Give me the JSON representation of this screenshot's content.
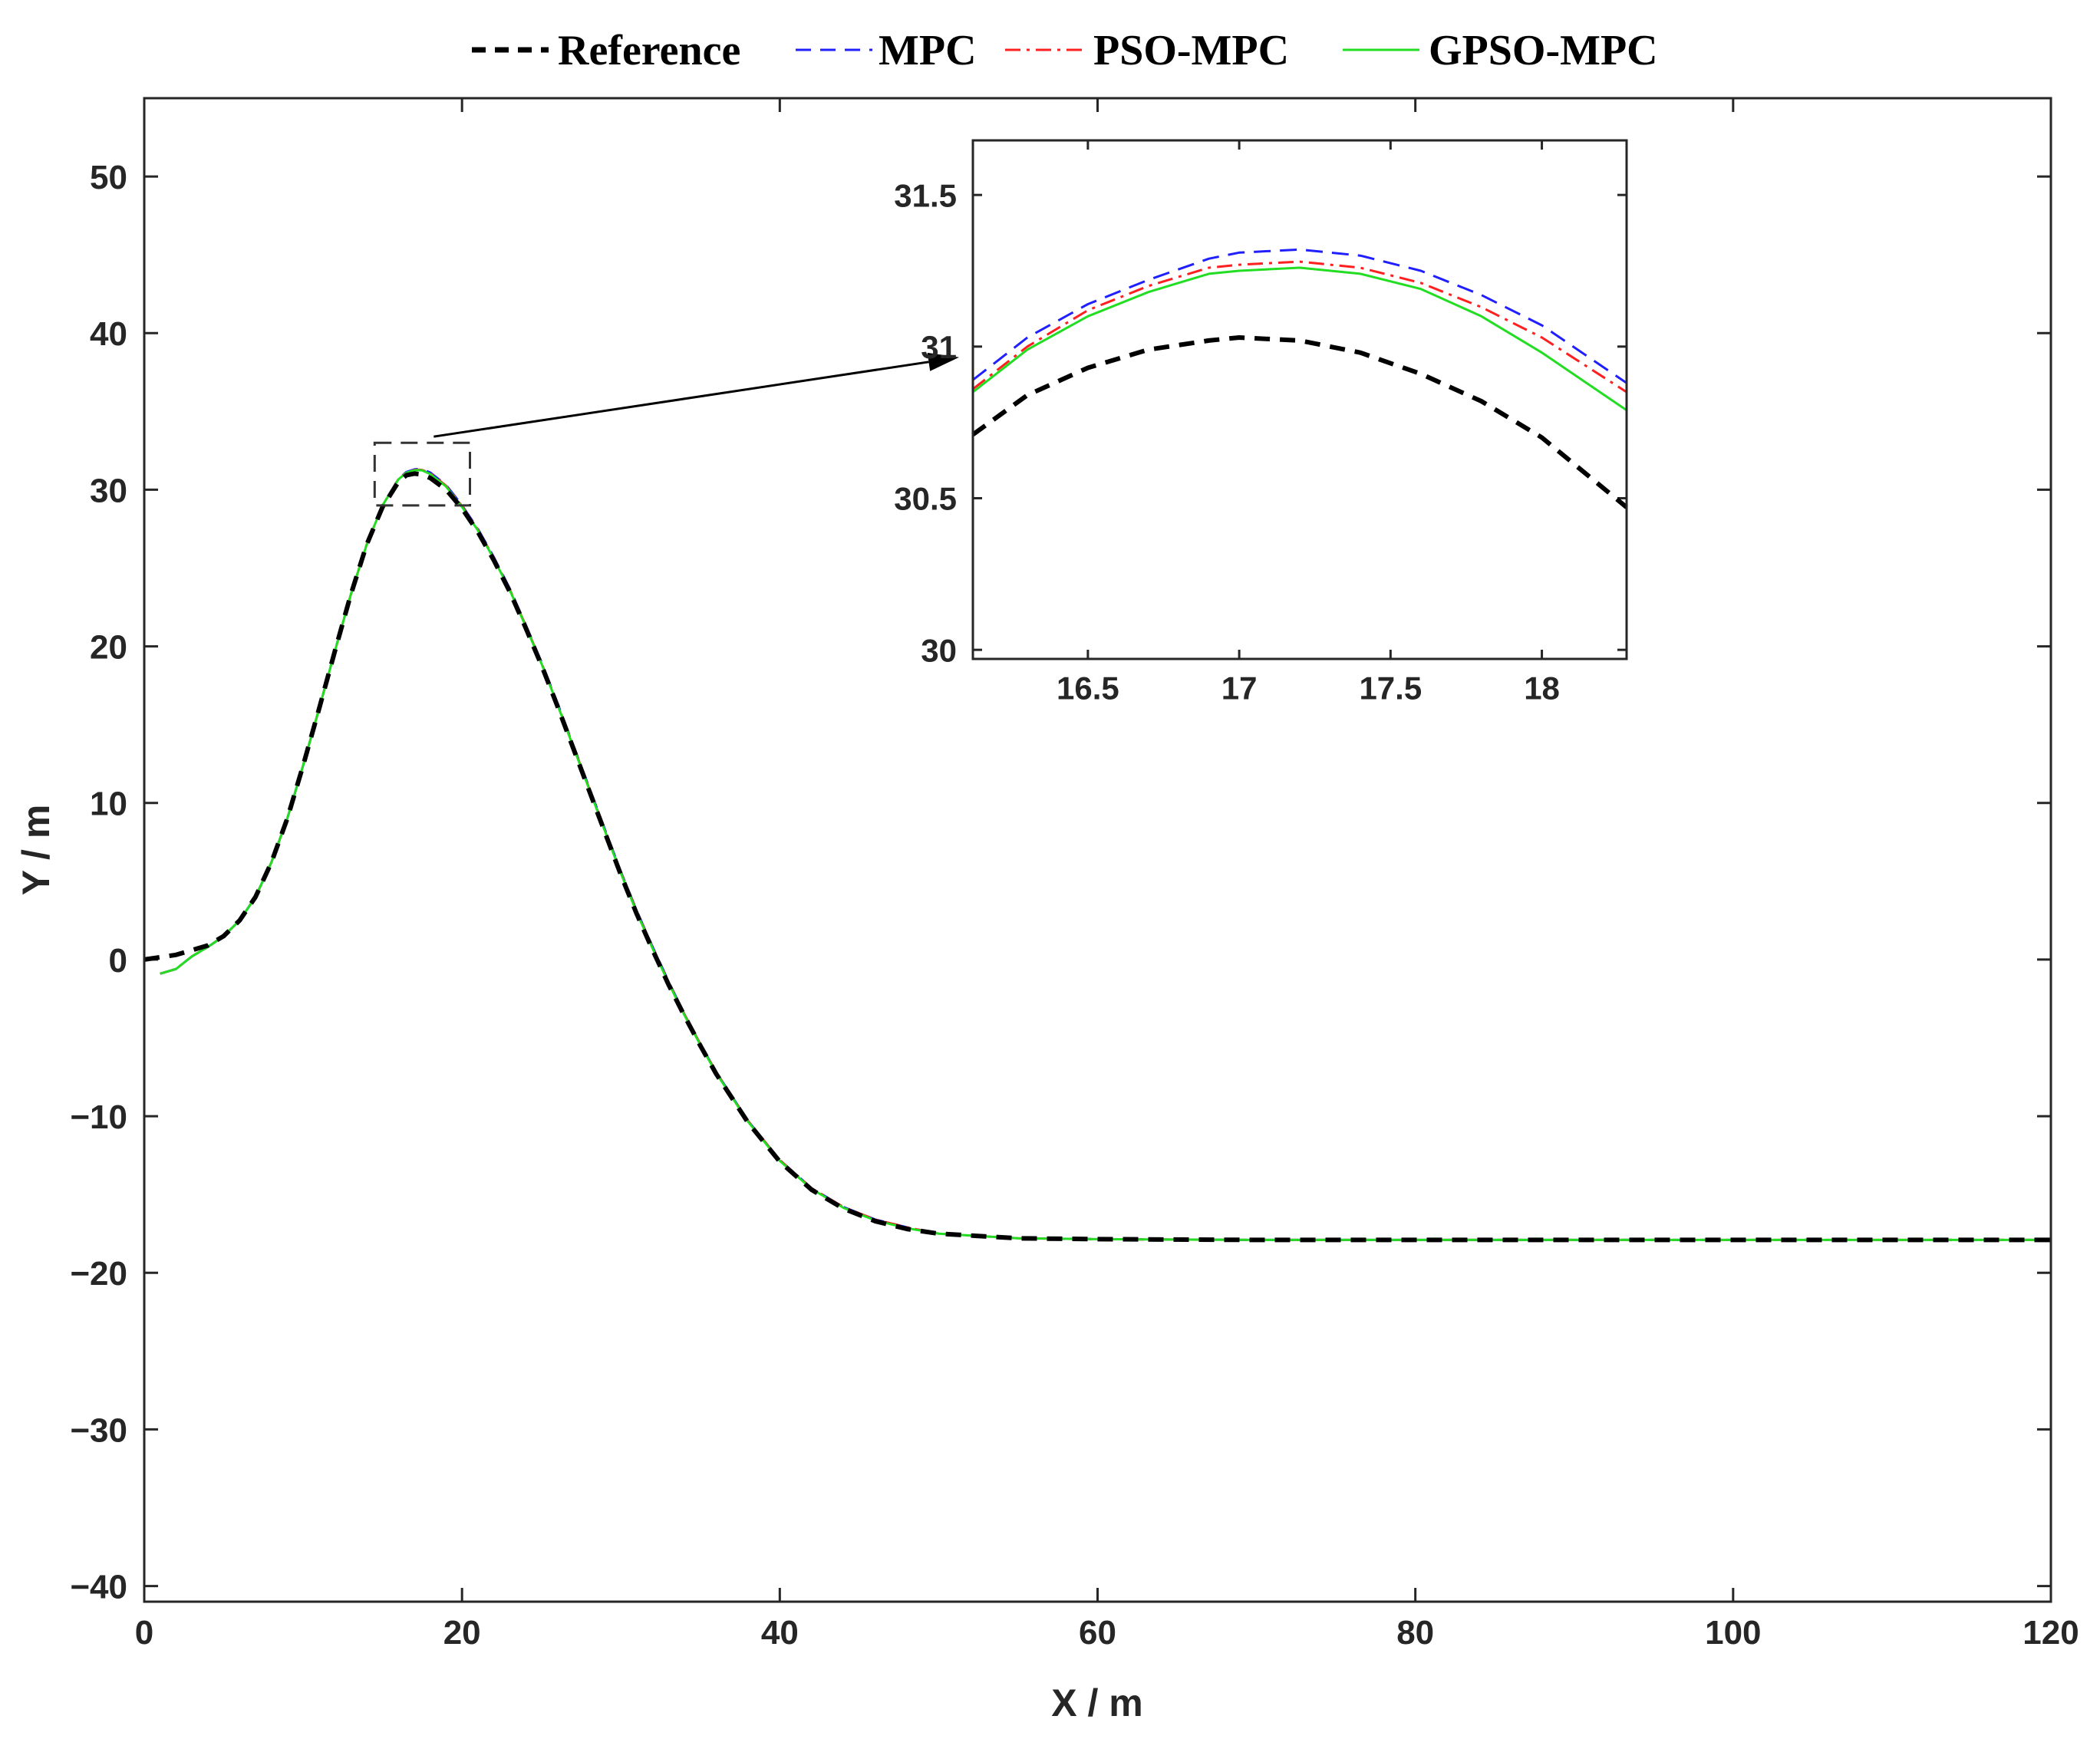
{
  "chart_data": {
    "type": "line",
    "xlabel": "X / m",
    "ylabel": "Y / m",
    "xlim": [
      0,
      120
    ],
    "ylim": [
      -41,
      55
    ],
    "xticks": [
      "0",
      "20",
      "40",
      "60",
      "80",
      "100",
      "120"
    ],
    "yticks": [
      "−40",
      "−30",
      "−20",
      "−10",
      "0",
      "10",
      "20",
      "30",
      "40",
      "50"
    ],
    "grid": false,
    "legend": "top, horizontal, outside plot area",
    "series": [
      {
        "name": "Reference",
        "color": "#000000",
        "style": "dashed-thick",
        "x": [
          0,
          2,
          4,
          5,
          6,
          7,
          8,
          9,
          10,
          11,
          12,
          13,
          14,
          15,
          16,
          16.5,
          17,
          17.5,
          18,
          19,
          20,
          21,
          22,
          23,
          24,
          25,
          26,
          27,
          28,
          29,
          30,
          31,
          32,
          33,
          34,
          35,
          36,
          38,
          40,
          42,
          44,
          46,
          48,
          50,
          55,
          60,
          70,
          80,
          90,
          100,
          110,
          120
        ],
        "y": [
          0,
          0.3,
          0.9,
          1.5,
          2.5,
          4.0,
          6.2,
          9.0,
          12.4,
          16.0,
          19.7,
          23.3,
          26.5,
          28.9,
          30.5,
          30.93,
          31.03,
          30.97,
          30.75,
          30.0,
          28.8,
          27.3,
          25.5,
          23.5,
          21.2,
          18.8,
          16.2,
          13.5,
          10.8,
          8.1,
          5.4,
          2.9,
          0.6,
          -1.6,
          -3.6,
          -5.5,
          -7.3,
          -10.4,
          -12.9,
          -14.7,
          -15.9,
          -16.7,
          -17.2,
          -17.5,
          -17.8,
          -17.85,
          -17.9,
          -17.9,
          -17.9,
          -17.9,
          -17.9,
          -17.9
        ]
      },
      {
        "name": "MPC",
        "color": "#1f1fff",
        "style": "dashed",
        "x": [
          1,
          2,
          3,
          4,
          5,
          6,
          7,
          8,
          9,
          10,
          11,
          12,
          13,
          14,
          15,
          16,
          16.5,
          17,
          17.2,
          17.5,
          18,
          19,
          20,
          21,
          22,
          23,
          24,
          25,
          26,
          27,
          28,
          29,
          30,
          31,
          32,
          33,
          34,
          35,
          36,
          38,
          40,
          42,
          44,
          46,
          48,
          50,
          55,
          60,
          70,
          80,
          90,
          100,
          110,
          120
        ],
        "y": [
          -0.9,
          -0.6,
          0.2,
          0.8,
          1.5,
          2.5,
          4.0,
          6.2,
          9.0,
          12.4,
          16.0,
          19.7,
          23.3,
          26.5,
          29.0,
          30.7,
          31.13,
          31.3,
          31.32,
          31.3,
          31.1,
          30.3,
          29.0,
          27.5,
          25.7,
          23.7,
          21.4,
          19.0,
          16.4,
          13.7,
          11.0,
          8.3,
          5.6,
          3.1,
          0.8,
          -1.4,
          -3.5,
          -5.4,
          -7.2,
          -10.3,
          -12.8,
          -14.6,
          -15.8,
          -16.6,
          -17.1,
          -17.5,
          -17.8,
          -17.85,
          -17.9,
          -17.9,
          -17.9,
          -17.9,
          -17.9,
          -17.9
        ]
      },
      {
        "name": "PSO-MPC",
        "color": "#ff1f1f",
        "style": "dash-dot",
        "x": [
          1,
          2,
          3,
          4,
          5,
          6,
          7,
          8,
          9,
          10,
          11,
          12,
          13,
          14,
          15,
          16,
          16.5,
          17,
          17.2,
          17.5,
          18,
          19,
          20,
          21,
          22,
          23,
          24,
          25,
          26,
          27,
          28,
          29,
          30,
          31,
          32,
          33,
          34,
          35,
          36,
          38,
          40,
          42,
          44,
          46,
          48,
          50,
          55,
          60,
          70,
          80,
          90,
          100,
          110,
          120
        ],
        "y": [
          -0.9,
          -0.6,
          0.2,
          0.8,
          1.5,
          2.5,
          4.0,
          6.2,
          9.0,
          12.4,
          16.0,
          19.7,
          23.3,
          26.5,
          29.0,
          30.68,
          31.11,
          31.26,
          31.28,
          31.26,
          31.05,
          30.25,
          28.95,
          27.45,
          25.65,
          23.65,
          21.35,
          18.95,
          16.35,
          13.65,
          10.95,
          8.25,
          5.55,
          3.05,
          0.75,
          -1.45,
          -3.5,
          -5.4,
          -7.2,
          -10.3,
          -12.8,
          -14.6,
          -15.8,
          -16.6,
          -17.1,
          -17.5,
          -17.8,
          -17.85,
          -17.9,
          -17.9,
          -17.9,
          -17.9,
          -17.9,
          -17.9
        ]
      },
      {
        "name": "GPSO-MPC",
        "color": "#22dd22",
        "style": "solid",
        "x": [
          1,
          2,
          3,
          4,
          5,
          6,
          7,
          8,
          9,
          10,
          11,
          12,
          13,
          14,
          15,
          16,
          16.5,
          17,
          17.2,
          17.5,
          18,
          19,
          20,
          21,
          22,
          23,
          24,
          25,
          26,
          27,
          28,
          29,
          30,
          31,
          32,
          33,
          34,
          35,
          36,
          38,
          40,
          42,
          44,
          46,
          48,
          50,
          55,
          60,
          70,
          80,
          90,
          100,
          110,
          120
        ],
        "y": [
          -0.9,
          -0.6,
          0.2,
          0.8,
          1.5,
          2.5,
          4.0,
          6.2,
          9.0,
          12.4,
          16.0,
          19.7,
          23.3,
          26.5,
          29.0,
          30.66,
          31.09,
          31.24,
          31.26,
          31.23,
          31.0,
          30.2,
          28.9,
          27.4,
          25.6,
          23.6,
          21.3,
          18.9,
          16.3,
          13.6,
          10.9,
          8.2,
          5.5,
          3.0,
          0.7,
          -1.5,
          -3.55,
          -5.45,
          -7.25,
          -10.35,
          -12.85,
          -14.65,
          -15.85,
          -16.65,
          -17.15,
          -17.5,
          -17.8,
          -17.85,
          -17.9,
          -17.9,
          -17.9,
          -17.9,
          -17.9,
          -17.9
        ]
      }
    ],
    "inset": {
      "xlim": [
        16.12,
        18.28
      ],
      "ylim": [
        29.97,
        31.68
      ],
      "xticks": [
        "16.5",
        "17",
        "17.5",
        "18"
      ],
      "yticks": [
        "30",
        "30.5",
        "31",
        "31.5"
      ],
      "series": [
        {
          "name": "Reference",
          "x": [
            16.12,
            16.3,
            16.5,
            16.7,
            16.9,
            17.0,
            17.2,
            17.4,
            17.6,
            17.8,
            18.0,
            18.28
          ],
          "y": [
            30.71,
            30.84,
            30.93,
            30.99,
            31.02,
            31.03,
            31.02,
            30.98,
            30.91,
            30.82,
            30.7,
            30.47
          ]
        },
        {
          "name": "MPC",
          "x": [
            16.12,
            16.3,
            16.5,
            16.7,
            16.9,
            17.0,
            17.2,
            17.4,
            17.6,
            17.8,
            18.0,
            18.28
          ],
          "y": [
            30.89,
            31.03,
            31.14,
            31.22,
            31.29,
            31.31,
            31.32,
            31.3,
            31.25,
            31.17,
            31.07,
            30.88
          ]
        },
        {
          "name": "PSO-MPC",
          "x": [
            16.12,
            16.3,
            16.5,
            16.7,
            16.9,
            17.0,
            17.2,
            17.4,
            17.6,
            17.8,
            18.0,
            18.28
          ],
          "y": [
            30.86,
            31.0,
            31.12,
            31.2,
            31.26,
            31.27,
            31.28,
            31.26,
            31.21,
            31.13,
            31.03,
            30.85
          ]
        },
        {
          "name": "GPSO-MPC",
          "x": [
            16.12,
            16.3,
            16.5,
            16.7,
            16.9,
            17.0,
            17.2,
            17.4,
            17.6,
            17.8,
            18.0,
            18.28
          ],
          "y": [
            30.85,
            30.99,
            31.1,
            31.18,
            31.24,
            31.25,
            31.26,
            31.24,
            31.19,
            31.1,
            30.98,
            30.79
          ]
        }
      ]
    },
    "zoom_region": {
      "xlim": [
        14.5,
        20.5
      ],
      "ylim": [
        29,
        33
      ]
    }
  }
}
